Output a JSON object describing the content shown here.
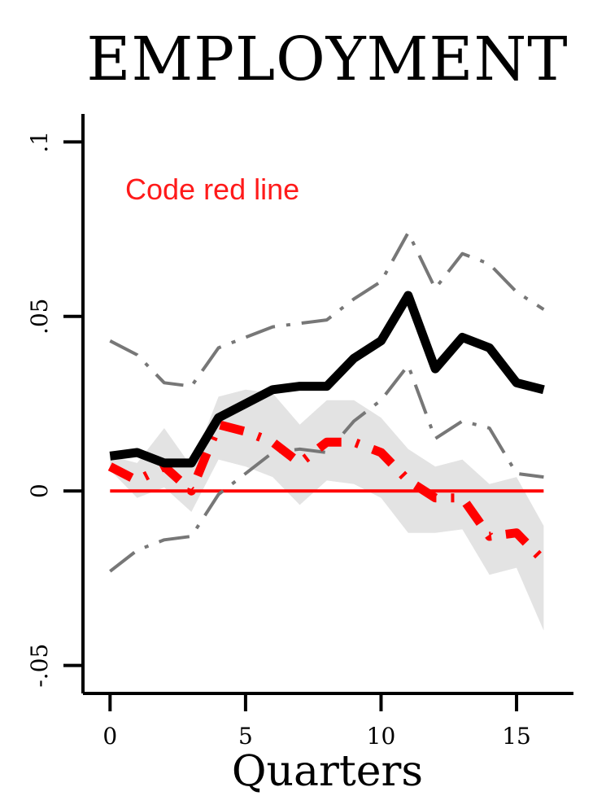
{
  "chart_data": {
    "type": "line",
    "title": "EMPLOYMENT",
    "xlabel": "Quarters",
    "ylabel": "",
    "annotation": "Code red line",
    "xlim": [
      -1.0,
      17.1
    ],
    "ylim": [
      -0.058,
      0.108
    ],
    "x_ticks": [
      0,
      5,
      10,
      15
    ],
    "x_tick_labels": [
      "0",
      "5",
      "10",
      "15"
    ],
    "y_ticks": [
      -0.05,
      0,
      0.05,
      0.1
    ],
    "y_tick_labels": [
      "-.05",
      "0",
      ".05",
      ".1"
    ],
    "grid": false,
    "legend": "none",
    "zero_line_color": "#ff0000",
    "x": [
      0,
      1,
      2,
      3,
      4,
      5,
      6,
      7,
      8,
      9,
      10,
      11,
      12,
      13,
      14,
      15,
      16
    ],
    "series": [
      {
        "style": "solid-black-thick",
        "color": "#000000",
        "values": [
          0.01,
          0.011,
          0.008,
          0.008,
          0.021,
          0.025,
          0.029,
          0.03,
          0.03,
          0.038,
          0.043,
          0.056,
          0.035,
          0.044,
          0.041,
          0.031,
          0.029
        ]
      },
      {
        "style": "dash-dot-gray-upper",
        "color": "#777777",
        "values": [
          0.043,
          0.039,
          0.031,
          0.03,
          0.041,
          0.044,
          0.047,
          0.048,
          0.049,
          0.055,
          0.06,
          0.074,
          0.058,
          0.068,
          0.065,
          0.057,
          0.052
        ]
      },
      {
        "style": "dash-dot-gray-lower",
        "color": "#777777",
        "values": [
          -0.023,
          -0.017,
          -0.014,
          -0.013,
          -0.001,
          0.005,
          0.011,
          0.012,
          0.011,
          0.02,
          0.026,
          0.036,
          0.015,
          0.02,
          0.018,
          0.005,
          0.004
        ]
      },
      {
        "style": "dashed-red-thick",
        "color": "#ff0000",
        "values": [
          0.007,
          0.003,
          0.007,
          0.0,
          0.019,
          0.017,
          0.014,
          0.008,
          0.014,
          0.014,
          0.011,
          0.003,
          -0.002,
          -0.002,
          -0.013,
          -0.012,
          -0.02
        ]
      }
    ],
    "band": {
      "color": "#e3e3e3",
      "upper": [
        0.01,
        0.008,
        0.018,
        0.007,
        0.027,
        0.029,
        0.028,
        0.019,
        0.026,
        0.026,
        0.021,
        0.012,
        0.007,
        0.009,
        0.002,
        0.004,
        -0.01
      ],
      "lower": [
        0.006,
        -0.002,
        0.001,
        -0.006,
        0.009,
        0.007,
        0.004,
        -0.004,
        0.003,
        0.002,
        -0.002,
        -0.012,
        -0.012,
        -0.011,
        -0.024,
        -0.022,
        -0.04
      ]
    }
  }
}
